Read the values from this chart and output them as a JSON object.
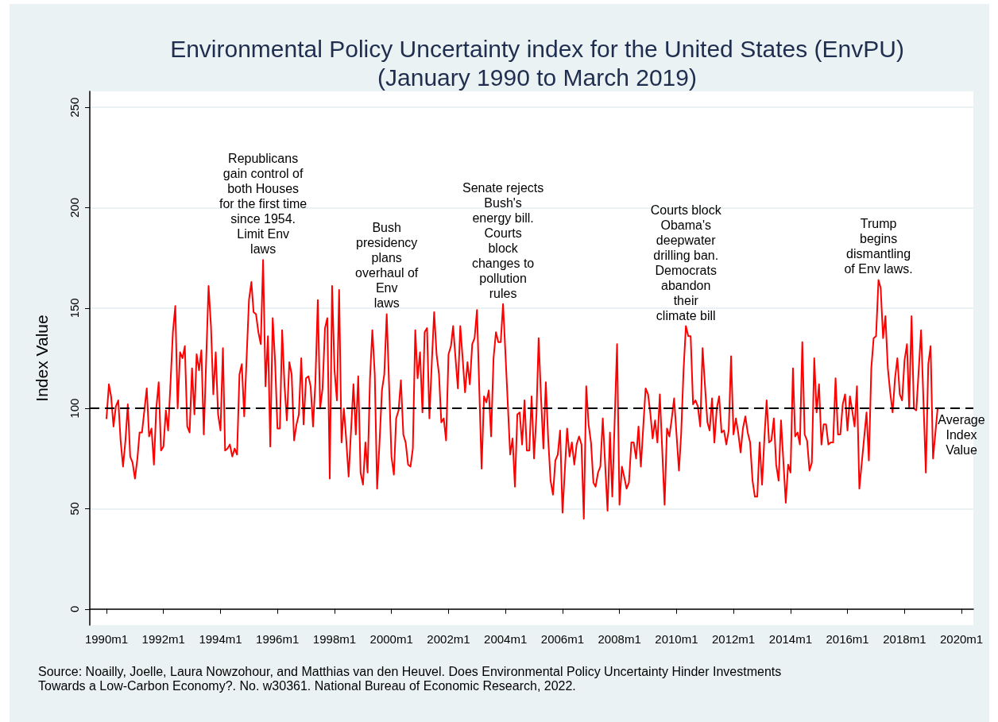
{
  "chart_data": {
    "type": "line",
    "title": "Environmental Policy Uncertainty index for the United States (EnvPU)\n(January 1990 to March 2019)",
    "ylabel": "Index Value",
    "x": [
      "1990-01",
      "1990-02",
      "1990-03",
      "1990-04",
      "1990-05",
      "1990-06",
      "1990-07",
      "1990-08",
      "1990-09",
      "1990-10",
      "1990-11",
      "1990-12",
      "1991-01",
      "1991-02",
      "1991-03",
      "1991-04",
      "1991-06",
      "1991-07",
      "1991-08",
      "1991-09",
      "1991-10",
      "1991-11",
      "1991-12",
      "1992-01",
      "1992-02",
      "1992-03",
      "1992-04",
      "1992-05",
      "1992-06",
      "1992-07",
      "1992-08",
      "1992-09",
      "1992-10",
      "1992-11",
      "1992-12",
      "1993-01",
      "1993-02",
      "1993-03",
      "1993-04",
      "1993-05",
      "1993-06",
      "1993-08",
      "1993-09",
      "1993-10",
      "1993-11",
      "1993-12",
      "1994-01",
      "1994-02",
      "1994-03",
      "1994-04",
      "1994-05",
      "1994-06",
      "1994-07",
      "1994-08",
      "1994-09",
      "1994-10",
      "1994-11",
      "1995-01",
      "1995-02",
      "1995-03",
      "1995-04",
      "1995-05",
      "1995-06",
      "1995-07",
      "1995-08",
      "1995-09",
      "1995-10",
      "1995-11",
      "1995-12",
      "1996-01",
      "1996-02",
      "1996-03",
      "1996-04",
      "1996-05",
      "1996-06",
      "1996-07",
      "1996-08",
      "1996-09",
      "1996-10",
      "1996-11",
      "1996-12",
      "1997-01",
      "1997-02",
      "1997-03",
      "1997-04",
      "1997-05",
      "1997-06",
      "1997-07",
      "1997-08",
      "1997-09",
      "1997-10",
      "1997-11",
      "1997-12",
      "1998-01",
      "1998-02",
      "1998-03",
      "1998-04",
      "1998-05",
      "1998-06",
      "1998-07",
      "1998-09",
      "1998-10",
      "1998-11",
      "1998-12",
      "1999-01",
      "1999-02",
      "1999-03",
      "1999-04",
      "1999-05",
      "1999-06",
      "1999-07",
      "1999-08",
      "1999-09",
      "1999-10",
      "1999-11",
      "2000-01",
      "2000-02",
      "2000-03",
      "2000-04",
      "2000-05",
      "2000-06",
      "2000-07",
      "2000-08",
      "2000-09",
      "2000-10",
      "2000-11",
      "2000-12",
      "2001-01",
      "2001-02",
      "2001-03",
      "2001-04",
      "2001-05",
      "2001-06",
      "2001-07",
      "2001-08",
      "2001-09",
      "2001-10",
      "2001-11",
      "2001-12",
      "2002-01",
      "2002-02",
      "2002-03",
      "2002-04",
      "2002-05",
      "2002-06",
      "2002-07",
      "2002-08",
      "2002-09",
      "2002-10",
      "2002-11",
      "2002-12",
      "2003-01",
      "2003-03",
      "2003-04",
      "2003-05",
      "2003-06",
      "2003-07",
      "2003-08",
      "2003-09",
      "2003-10",
      "2003-11",
      "2003-12",
      "2004-01",
      "2004-03",
      "2004-04",
      "2004-05",
      "2004-06",
      "2004-07",
      "2004-08",
      "2004-09",
      "2004-10",
      "2004-11",
      "2004-12",
      "2005-01",
      "2005-02",
      "2005-03",
      "2005-04",
      "2005-05",
      "2005-06",
      "2005-07",
      "2005-08",
      "2005-09",
      "2005-10",
      "2005-11",
      "2005-12",
      "2006-01",
      "2006-03",
      "2006-04",
      "2006-05",
      "2006-06",
      "2006-07",
      "2006-08",
      "2006-09",
      "2006-10",
      "2006-11",
      "2006-12",
      "2007-01",
      "2007-02",
      "2007-03",
      "2007-04",
      "2007-05",
      "2007-06",
      "2007-08",
      "2007-09",
      "2007-10",
      "2007-12",
      "2008-01",
      "2008-02",
      "2008-03",
      "2008-04",
      "2008-05",
      "2008-06",
      "2008-07",
      "2008-08",
      "2008-09",
      "2008-10",
      "2008-11",
      "2008-12",
      "2009-01",
      "2009-02",
      "2009-03",
      "2009-04",
      "2009-05",
      "2009-06",
      "2009-08",
      "2009-09",
      "2009-10",
      "2009-11",
      "2009-12",
      "2010-02",
      "2010-03",
      "2010-04",
      "2010-05",
      "2010-06",
      "2010-07",
      "2010-08",
      "2010-09",
      "2010-10",
      "2010-11",
      "2010-12",
      "2011-01",
      "2011-02",
      "2011-03",
      "2011-04",
      "2011-05",
      "2011-06",
      "2011-07",
      "2011-08",
      "2011-09",
      "2011-10",
      "2011-11",
      "2011-12",
      "2012-01",
      "2012-02",
      "2012-03",
      "2012-04",
      "2012-05",
      "2012-06",
      "2012-07",
      "2012-08",
      "2012-09",
      "2012-10",
      "2012-11",
      "2012-12",
      "2013-01",
      "2013-02",
      "2013-03",
      "2013-04",
      "2013-05",
      "2013-06",
      "2013-07",
      "2013-08",
      "2013-09",
      "2013-11",
      "2013-12",
      "2014-01",
      "2014-02",
      "2014-03",
      "2014-04",
      "2014-05",
      "2014-06",
      "2014-07",
      "2014-08",
      "2014-09",
      "2014-10",
      "2014-11",
      "2014-12",
      "2015-01",
      "2015-02",
      "2015-03",
      "2015-04",
      "2015-05",
      "2015-06",
      "2015-07",
      "2015-08",
      "2015-09",
      "2015-10",
      "2015-11",
      "2015-12",
      "2016-01",
      "2016-02",
      "2016-03",
      "2016-04",
      "2016-05",
      "2016-06",
      "2016-09",
      "2016-10",
      "2016-11",
      "2016-12",
      "2017-01",
      "2017-02",
      "2017-03",
      "2017-04",
      "2017-05",
      "2017-06",
      "2017-07",
      "2017-08",
      "2017-09",
      "2017-10",
      "2017-11",
      "2017-12",
      "2018-01",
      "2018-02",
      "2018-03",
      "2018-04",
      "2018-05",
      "2018-06",
      "2018-08",
      "2018-10",
      "2018-11",
      "2018-12",
      "2019-01",
      "2019-03"
    ],
    "values": [
      95,
      112,
      106,
      91,
      101,
      104,
      84,
      71,
      84,
      102,
      76,
      73,
      65,
      75,
      88,
      88,
      110,
      86,
      90,
      72,
      100,
      113,
      79,
      81,
      99,
      89,
      113,
      138,
      151,
      100,
      128,
      125,
      131,
      91,
      88,
      120,
      97,
      127,
      119,
      129,
      87,
      161,
      141,
      107,
      128,
      97,
      89,
      130,
      79,
      80,
      82,
      76,
      80,
      77,
      117,
      122,
      96,
      154,
      163,
      148,
      147,
      138,
      132,
      174,
      111,
      136,
      81,
      145,
      124,
      90,
      90,
      139,
      111,
      94,
      123,
      117,
      84,
      92,
      97,
      125,
      92,
      115,
      116,
      111,
      91,
      113,
      154,
      100,
      110,
      140,
      145,
      65,
      161,
      119,
      104,
      159,
      83,
      100,
      84,
      66,
      112,
      87,
      116,
      68,
      62,
      83,
      68,
      115,
      139,
      117,
      60,
      83,
      109,
      117,
      147,
      76,
      67,
      95,
      99,
      114,
      87,
      83,
      72,
      71,
      80,
      139,
      115,
      128,
      98,
      138,
      140,
      95,
      123,
      148,
      127,
      117,
      93,
      95,
      84,
      127,
      131,
      141,
      125,
      110,
      141,
      125,
      108,
      123,
      112,
      132,
      135,
      149,
      70,
      106,
      103,
      109,
      86,
      125,
      138,
      133,
      133,
      152,
      127,
      77,
      85,
      61,
      97,
      98,
      82,
      104,
      79,
      79,
      106,
      75,
      97,
      135,
      105,
      80,
      113,
      85,
      64,
      57,
      74,
      77,
      89,
      48,
      90,
      76,
      83,
      72,
      82,
      86,
      82,
      45,
      111,
      92,
      83,
      63,
      61,
      68,
      71,
      95,
      49,
      88,
      56,
      132,
      52,
      71,
      66,
      60,
      63,
      83,
      83,
      75,
      91,
      71,
      91,
      110,
      107,
      97,
      85,
      94,
      83,
      107,
      52,
      90,
      86,
      95,
      105,
      69,
      87,
      119,
      141,
      136,
      136,
      102,
      104,
      101,
      91,
      130,
      111,
      93,
      89,
      105,
      83,
      100,
      106,
      88,
      89,
      82,
      89,
      126,
      87,
      95,
      88,
      78,
      90,
      96,
      88,
      83,
      64,
      56,
      56,
      83,
      62,
      86,
      104,
      83,
      84,
      95,
      72,
      64,
      94,
      53,
      72,
      68,
      120,
      86,
      88,
      82,
      133,
      87,
      84,
      69,
      73,
      125,
      98,
      112,
      82,
      92,
      92,
      82,
      83,
      83,
      115,
      87,
      87,
      102,
      107,
      89,
      106,
      99,
      91,
      111,
      60,
      98,
      74,
      120,
      135,
      136,
      164,
      160,
      135,
      146,
      120,
      108,
      98,
      115,
      125,
      107,
      104,
      124,
      132,
      100,
      146,
      100,
      99,
      139,
      68,
      122,
      131,
      75,
      100
    ],
    "color": "#ff0000",
    "marker": "none",
    "line_style": "solid",
    "xlim": [
      "1989-06",
      "2020-06"
    ],
    "xticks": [
      {
        "value": "1990-01",
        "label": "1990m1"
      },
      {
        "value": "1992-01",
        "label": "1992m1"
      },
      {
        "value": "1994-01",
        "label": "1994m1"
      },
      {
        "value": "1996-01",
        "label": "1996m1"
      },
      {
        "value": "1998-01",
        "label": "1998m1"
      },
      {
        "value": "2000-01",
        "label": "2000m1"
      },
      {
        "value": "2002-01",
        "label": "2002m1"
      },
      {
        "value": "2004-01",
        "label": "2004m1"
      },
      {
        "value": "2006-01",
        "label": "2006m1"
      },
      {
        "value": "2008-01",
        "label": "2008m1"
      },
      {
        "value": "2010-01",
        "label": "2010m1"
      },
      {
        "value": "2012-01",
        "label": "2012m1"
      },
      {
        "value": "2014-01",
        "label": "2014m1"
      },
      {
        "value": "2016-01",
        "label": "2016m1"
      },
      {
        "value": "2018-01",
        "label": "2018m1"
      },
      {
        "value": "2020-01",
        "label": "2020m1"
      }
    ],
    "ylim": [
      -8,
      258
    ],
    "yticks": [
      0,
      50,
      100,
      150,
      200,
      250
    ],
    "grid": "y",
    "ref_lines": [
      {
        "axis": "y",
        "value": 100,
        "label": "Average\nIndex\nValue",
        "color": "#000000",
        "line_style": "dashed"
      }
    ],
    "annotations": [
      {
        "text": "Republicans\ngain control of\nboth Houses\nfor the first time\nsince 1954.\nLimit Env\nlaws",
        "x": "1995-07",
        "y": 174
      },
      {
        "text": "Bush\npresidency\nplans\noverhaul of\nEnv\nlaws",
        "x": "1999-11",
        "y": 147
      },
      {
        "text": "Senate rejects\nBush's\nenergy bill.\nCourts\nblock\nchanges to\npollution\nrules",
        "x": "2003-12",
        "y": 152
      },
      {
        "text": "Courts block\nObama's\ndeepwater\ndrilling ban.\nDemocrats\nabandon\ntheir\nclimate bill",
        "x": "2010-05",
        "y": 141
      },
      {
        "text": "Trump\nbegins\ndismantling\nof Env laws.",
        "x": "2017-02",
        "y": 164
      },
      "Source: Noailly, Joelle, Laura Nowzohour, and Matthias van den Heuvel. Does Environmental Policy Uncertainty Hinder Investments\nTowards a Low-Carbon Economy?. No. w30361. National Bureau of Economic Research, 2022."
    ]
  }
}
